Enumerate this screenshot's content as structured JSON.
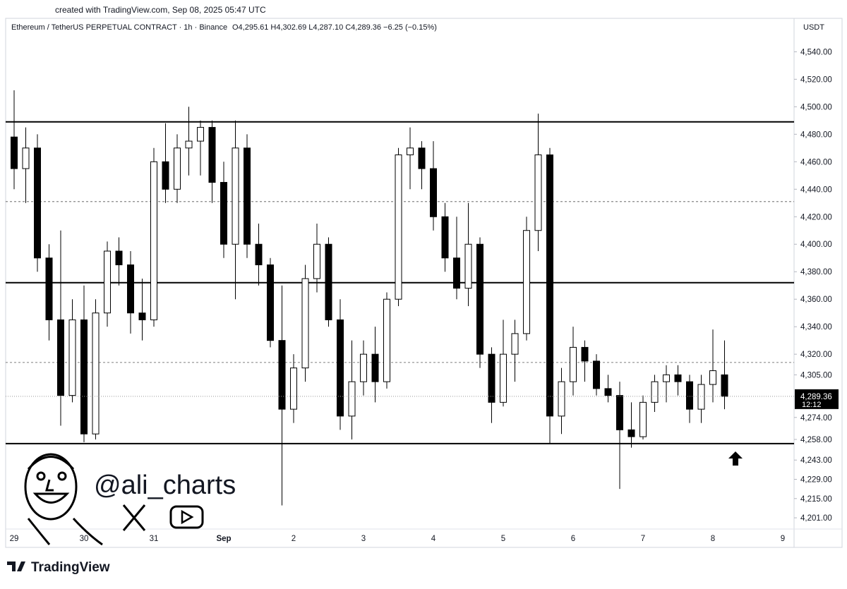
{
  "chart_data": {
    "type": "candlestick",
    "created": "created with TradingView.com, Sep 08, 2025 05:47 UTC",
    "title": "Ethereum / TetherUS PERPETUAL CONTRACT · 1h · Binance",
    "header_ohlc": "O4,295.61  H4,302.69  L4,287.10  C4,289.36  −6.25 (−0.15%)",
    "currency": "USDT",
    "watermark": "@ali_charts",
    "brand": "TradingView",
    "up_color": "#ffffff",
    "down_color": "#000000",
    "categories": [
      "29",
      null,
      null,
      null,
      null,
      null,
      "30",
      null,
      null,
      null,
      null,
      null,
      "31",
      null,
      null,
      null,
      null,
      null,
      "Sep",
      null,
      null,
      null,
      null,
      null,
      "2",
      null,
      null,
      null,
      null,
      null,
      "3",
      null,
      null,
      null,
      null,
      null,
      "4",
      null,
      null,
      null,
      null,
      null,
      "5",
      null,
      null,
      null,
      null,
      null,
      "6",
      null,
      null,
      null,
      null,
      null,
      "7",
      null,
      null,
      null,
      null,
      null,
      "8",
      null,
      null,
      null,
      null,
      null,
      "9"
    ],
    "open": [
      4478,
      4455,
      4470,
      4390,
      4345,
      4290,
      4345,
      4262,
      4350,
      4395,
      4385,
      4350,
      4345,
      4460,
      4440,
      4470,
      4475,
      4485,
      4445,
      4400,
      4470,
      4400,
      4385,
      4330,
      4280,
      4310,
      4375,
      4400,
      4345,
      4275,
      4300,
      4320,
      4300,
      4360,
      4465,
      4470,
      4455,
      4420,
      4390,
      4368,
      4400,
      4320,
      4285,
      4320,
      4335,
      4410,
      4465,
      4275,
      4300,
      4325,
      4315,
      4295,
      4290,
      4265,
      4260,
      4285,
      4300,
      4305,
      4300,
      4280,
      4298,
      4305,
      null,
      null,
      null,
      null,
      null
    ],
    "high": [
      4512,
      4485,
      4480,
      4400,
      4410,
      4360,
      4370,
      4360,
      4402,
      4405,
      4395,
      4375,
      4470,
      4488,
      4480,
      4500,
      4490,
      4490,
      4460,
      4490,
      4480,
      4415,
      4390,
      4370,
      4320,
      4385,
      4415,
      4405,
      4360,
      4330,
      4330,
      4340,
      4365,
      4470,
      4485,
      4475,
      4475,
      4430,
      4420,
      4430,
      4405,
      4325,
      4345,
      4345,
      4420,
      4495,
      4470,
      4310,
      4340,
      4330,
      4320,
      4305,
      4300,
      4285,
      4290,
      4305,
      4312,
      4312,
      4305,
      4305,
      4338,
      4330,
      null,
      null,
      null,
      null,
      null
    ],
    "low": [
      4440,
      4430,
      4380,
      4330,
      4268,
      4285,
      4256,
      4258,
      4340,
      4370,
      4335,
      4330,
      4340,
      4430,
      4430,
      4450,
      4450,
      4430,
      4390,
      4360,
      4390,
      4370,
      4325,
      4210,
      4270,
      4300,
      4365,
      4340,
      4265,
      4258,
      4290,
      4285,
      4295,
      4355,
      4440,
      4440,
      4410,
      4380,
      4360,
      4355,
      4310,
      4270,
      4282,
      4300,
      4330,
      4395,
      4255,
      4262,
      4290,
      4300,
      4290,
      4285,
      4222,
      4252,
      4258,
      4278,
      4285,
      4290,
      4270,
      4270,
      4285,
      4280,
      null,
      null,
      null,
      null,
      null
    ],
    "close": [
      4455,
      4470,
      4390,
      4345,
      4290,
      4345,
      4262,
      4350,
      4395,
      4385,
      4350,
      4345,
      4460,
      4440,
      4470,
      4475,
      4485,
      4445,
      4400,
      4470,
      4400,
      4385,
      4330,
      4280,
      4310,
      4375,
      4400,
      4345,
      4275,
      4300,
      4320,
      4300,
      4360,
      4465,
      4470,
      4455,
      4420,
      4390,
      4368,
      4400,
      4320,
      4285,
      4320,
      4335,
      4410,
      4465,
      4275,
      4300,
      4325,
      4315,
      4295,
      4290,
      4265,
      4260,
      4285,
      4300,
      4305,
      4300,
      4280,
      4298,
      4308,
      4289.36,
      null,
      null,
      null,
      null,
      null
    ],
    "last_price": {
      "value": 4289.36,
      "label": "4,289.36"
    },
    "countdown": "12:12",
    "levels_solid": [
      4489,
      4372,
      4255
    ],
    "levels_dashed": [
      4431,
      4314
    ],
    "ylim": [
      4180,
      4552
    ],
    "yticks": [
      {
        "value": 4540,
        "label": "4,540.00"
      },
      {
        "value": 4520,
        "label": "4,520.00"
      },
      {
        "value": 4500,
        "label": "4,500.00"
      },
      {
        "value": 4480,
        "label": "4,480.00"
      },
      {
        "value": 4460,
        "label": "4,460.00"
      },
      {
        "value": 4440,
        "label": "4,440.00"
      },
      {
        "value": 4420,
        "label": "4,420.00"
      },
      {
        "value": 4400,
        "label": "4,400.00"
      },
      {
        "value": 4380,
        "label": "4,380.00"
      },
      {
        "value": 4360,
        "label": "4,360.00"
      },
      {
        "value": 4340,
        "label": "4,340.00"
      },
      {
        "value": 4320,
        "label": "4,320.00"
      },
      {
        "value": 4305,
        "label": "4,305.00"
      },
      {
        "value": 4274,
        "label": "4,274.00"
      },
      {
        "value": 4258,
        "label": "4,258.00"
      },
      {
        "value": 4243,
        "label": "4,243.00"
      },
      {
        "value": 4229,
        "label": "4,229.00"
      },
      {
        "value": 4215,
        "label": "4,215.00"
      },
      {
        "value": 4201,
        "label": "4,201.00"
      }
    ]
  }
}
